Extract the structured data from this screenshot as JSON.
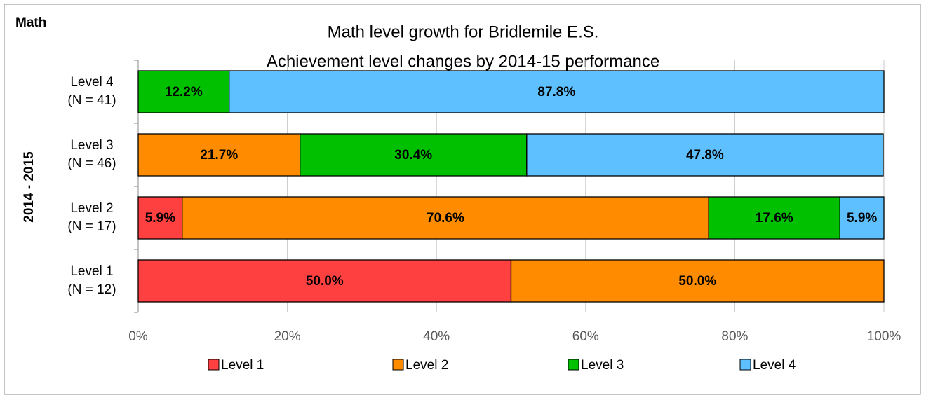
{
  "chart_data": {
    "type": "stacked_bar_horizontal",
    "corner_label": "Math",
    "title": "Math level growth for Bridlemile E.S.",
    "subtitle": "Achievement level changes by 2014-15 performance",
    "y_label": "2014 - 2015",
    "categories": [
      [
        "Level 4",
        "(N = 41)"
      ],
      [
        "Level 3",
        "(N = 46)"
      ],
      [
        "Level 2",
        "(N = 17)"
      ],
      [
        "Level 1",
        "(N = 12)"
      ]
    ],
    "series": [
      {
        "name": "Level 1",
        "color": "#ff4040",
        "values": [
          null,
          null,
          5.9,
          50.0
        ],
        "value_labels": [
          null,
          null,
          "5.9%",
          "50.0%"
        ]
      },
      {
        "name": "Level 2",
        "color": "#ff8c00",
        "values": [
          null,
          21.7,
          70.6,
          50.0
        ],
        "value_labels": [
          null,
          "21.7%",
          "70.6%",
          "50.0%"
        ]
      },
      {
        "name": "Level 3",
        "color": "#00c000",
        "values": [
          12.2,
          30.4,
          17.6,
          null
        ],
        "value_labels": [
          "12.2%",
          "30.4%",
          "17.6%",
          null
        ]
      },
      {
        "name": "Level 4",
        "color": "#5ec0ff",
        "values": [
          87.8,
          47.8,
          5.9,
          null
        ],
        "value_labels": [
          "87.8%",
          "47.8%",
          "5.9%",
          null
        ]
      }
    ],
    "xlim": [
      0,
      100
    ],
    "xticks": [
      {
        "value": 0,
        "label": "0%"
      },
      {
        "value": 20,
        "label": "20%"
      },
      {
        "value": 40,
        "label": "40%"
      },
      {
        "value": 60,
        "label": "60%"
      },
      {
        "value": 80,
        "label": "80%"
      },
      {
        "value": 100,
        "label": "100%"
      }
    ],
    "grid": true,
    "legend": "bottom"
  }
}
